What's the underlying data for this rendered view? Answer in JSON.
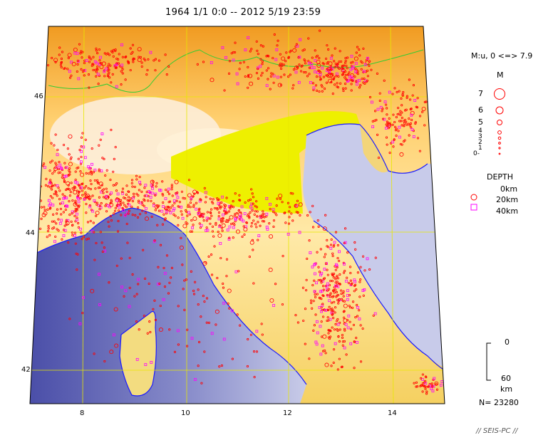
{
  "title": "1964 1/1 0:0 -- 2012 5/19 23:59",
  "map": {
    "x_ticks": [
      "8",
      "10",
      "12",
      "14"
    ],
    "y_ticks": [
      "46",
      "44",
      "42"
    ]
  },
  "legend": {
    "magnitude_range": "M:u, 0 <=> 7.9",
    "magnitude_heading": "M",
    "magnitudes": [
      "7",
      "6",
      "5",
      "4",
      "3",
      "2",
      "1",
      "0-"
    ],
    "depth_heading": "DEPTH",
    "depths": [
      "0km",
      "20km",
      "40km"
    ],
    "depth_scale_top": "0",
    "depth_scale_bottom": "60",
    "depth_scale_unit": "km",
    "count": "N= 23280"
  },
  "footer": "// SEIS-PC //",
  "colors": {
    "shallow": "#ff0000",
    "deep": "#ff00ff",
    "sea": "#a8acd8",
    "lowland": "#eef000",
    "grid": "#e8e800",
    "coast": "#1a1aff",
    "border": "#33cc33"
  }
}
